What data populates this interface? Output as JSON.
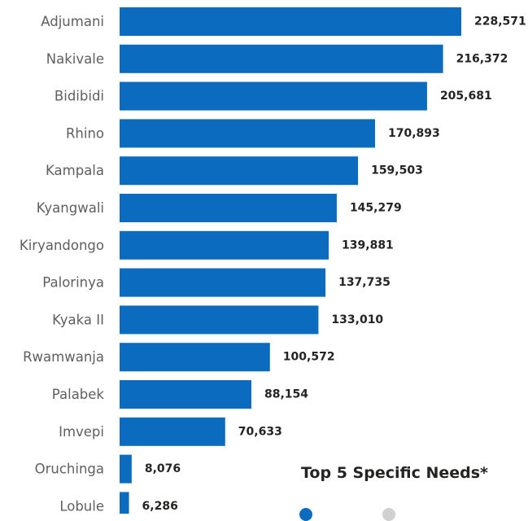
{
  "chart_data": {
    "type": "bar",
    "orientation": "horizontal",
    "categories": [
      "Adjumani",
      "Nakivale",
      "Bidibidi",
      "Rhino",
      "Kampala",
      "Kyangwali",
      "Kiryandongo",
      "Palorinya",
      "Kyaka II",
      "Rwamwanja",
      "Palabek",
      "Imvepi",
      "Oruchinga",
      "Lobule"
    ],
    "values": [
      228571,
      216372,
      205681,
      170893,
      159503,
      145279,
      139881,
      137735,
      133010,
      100572,
      88154,
      70633,
      8076,
      6286
    ],
    "value_labels": [
      "228,571",
      "216,372",
      "205,681",
      "170,893",
      "159,503",
      "145,279",
      "139,881",
      "137,735",
      "133,010",
      "100,572",
      "88,154",
      "70,633",
      "8,076",
      "6,286"
    ],
    "bar_color": "#0b6cbf",
    "xlim": [
      0,
      228571
    ],
    "grid": false,
    "data_labels": "outside-end"
  },
  "next_section": {
    "title": "Top 5 Specific Needs*",
    "legend_colors": [
      "#0b6cbf",
      "#d0d0d0"
    ]
  }
}
